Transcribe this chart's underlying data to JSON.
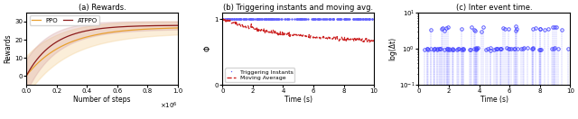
{
  "fig_width": 6.4,
  "fig_height": 1.32,
  "dpi": 100,
  "subplot_a": {
    "title": "(a) Rewards.",
    "xlabel": "Number of steps",
    "ylabel": "Rewards",
    "xlim": [
      0,
      1000000
    ],
    "ylim": [
      -5,
      35
    ],
    "yticks": [
      0,
      10,
      20,
      30
    ],
    "xticks": [
      0,
      200000,
      400000,
      600000,
      800000,
      1000000
    ],
    "xticklabels": [
      "0.0",
      "0.2",
      "0.4",
      "0.6",
      "0.8",
      "1.0"
    ],
    "ppo_color": "#E8A030",
    "ppo_fill_color": "#F5D5A0",
    "atppo_color": "#8B1A1A",
    "atppo_fill_color": "#D4A0A0",
    "legend_labels": [
      "PPO",
      "ATPPO"
    ]
  },
  "subplot_b": {
    "title": "(b) Triggering instants and moving avg.",
    "xlabel": "Time (s)",
    "ylabel": "Φ",
    "xlim": [
      0,
      10
    ],
    "ylim": [
      0,
      1.1
    ],
    "xticks": [
      0,
      2,
      4,
      6,
      8,
      10
    ],
    "trigger_color": "#6060FF",
    "moving_avg_color": "#CC2222",
    "legend_labels": [
      "Triggering Instants",
      "Moving Average"
    ]
  },
  "subplot_c": {
    "title": "(c) Inter event time.",
    "xlabel": "Time (s)",
    "ylabel": "log(Δt)",
    "xlim": [
      0,
      10
    ],
    "ylim_log": [
      0.1,
      10
    ],
    "xticks": [
      0,
      2,
      4,
      6,
      8,
      10
    ],
    "marker_color": "#4444FF",
    "marker_size": 2.5
  }
}
